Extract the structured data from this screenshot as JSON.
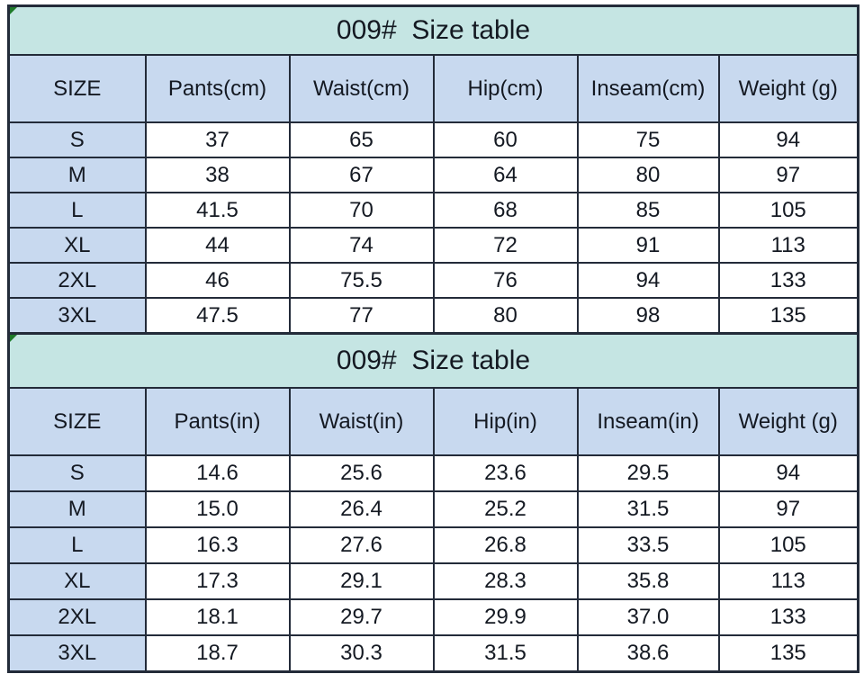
{
  "colors": {
    "title_bg": "#c5e5e3",
    "header_bg": "#c8d9ef",
    "size_column_bg": "#c8d9ef",
    "data_bg": "#ffffff",
    "border": "#232b39",
    "text": "#141922",
    "corner_triangle": "#1e7a29"
  },
  "tables": [
    {
      "title": "009#  Size table",
      "headers": [
        "SIZE",
        "Pants(cm)",
        "Waist(cm)",
        "Hip(cm)",
        "Inseam(cm)",
        "Weight (g)"
      ],
      "rows": [
        [
          "S",
          "37",
          "65",
          "60",
          "75",
          "94"
        ],
        [
          "M",
          "38",
          "67",
          "64",
          "80",
          "97"
        ],
        [
          "L",
          "41.5",
          "70",
          "68",
          "85",
          "105"
        ],
        [
          "XL",
          "44",
          "74",
          "72",
          "91",
          "113"
        ],
        [
          "2XL",
          "46",
          "75.5",
          "76",
          "94",
          "133"
        ],
        [
          "3XL",
          "47.5",
          "77",
          "80",
          "98",
          "135"
        ]
      ]
    },
    {
      "title": "009#  Size table",
      "headers": [
        "SIZE",
        "Pants(in)",
        "Waist(in)",
        "Hip(in)",
        "Inseam(in)",
        "Weight (g)"
      ],
      "rows": [
        [
          "S",
          "14.6",
          "25.6",
          "23.6",
          "29.5",
          "94"
        ],
        [
          "M",
          "15.0",
          "26.4",
          "25.2",
          "31.5",
          "97"
        ],
        [
          "L",
          "16.3",
          "27.6",
          "26.8",
          "33.5",
          "105"
        ],
        [
          "XL",
          "17.3",
          "29.1",
          "28.3",
          "35.8",
          "113"
        ],
        [
          "2XL",
          "18.1",
          "29.7",
          "29.9",
          "37.0",
          "133"
        ],
        [
          "3XL",
          "18.7",
          "30.3",
          "31.5",
          "38.6",
          "135"
        ]
      ]
    }
  ]
}
